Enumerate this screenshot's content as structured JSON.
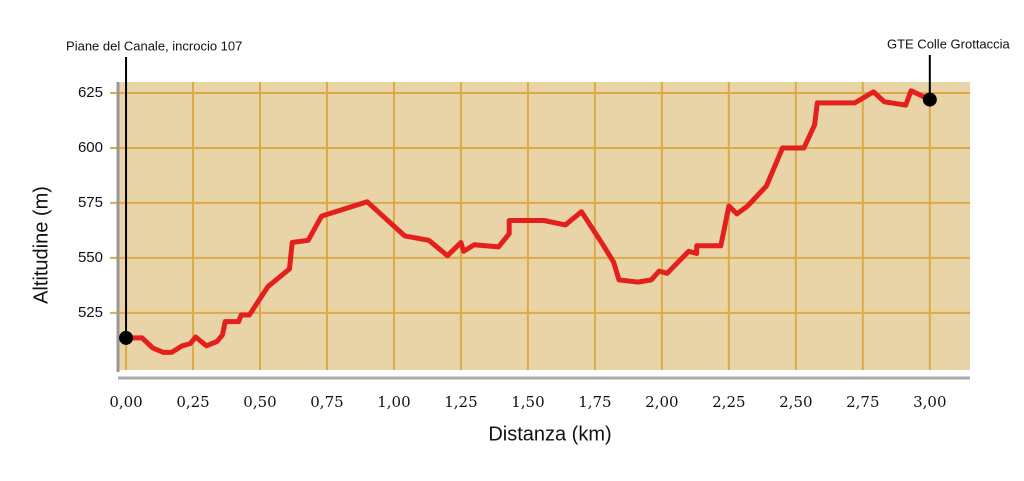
{
  "chart_data": {
    "type": "line",
    "x_label": "Distanza (km)",
    "y_label": "Altitudine (m)",
    "annotations": [
      "Piane del Canale, incrocio 107",
      "GTE Colle Grottaccia"
    ],
    "x": [
      0,
      0.06,
      0.1,
      0.14,
      0.17,
      0.21,
      0.24,
      0.26,
      0.3,
      0.34,
      0.36,
      0.37,
      0.42,
      0.43,
      0.46,
      0.53,
      0.61,
      0.62,
      0.68,
      0.73,
      0.9,
      1.04,
      1.13,
      1.2,
      1.25,
      1.26,
      1.3,
      1.39,
      1.43,
      1.43,
      1.56,
      1.64,
      1.7,
      1.78,
      1.82,
      1.84,
      1.91,
      1.96,
      1.99,
      2.02,
      2.1,
      2.13,
      2.13,
      2.22,
      2.25,
      2.28,
      2.32,
      2.39,
      2.45,
      2.53,
      2.57,
      2.58,
      2.72,
      2.79,
      2.83,
      2.91,
      2.93,
      3.0
    ],
    "series": [
      {
        "name": "Altitudine",
        "color": "#e3201e",
        "values": [
          513.6,
          513.6,
          509,
          507,
          507,
          510,
          511,
          514,
          510,
          512,
          515,
          521,
          521,
          524,
          524,
          537,
          545,
          557,
          558,
          569,
          575.5,
          560,
          558,
          551,
          557,
          553,
          556,
          555,
          561,
          567,
          567,
          565,
          571,
          556,
          548,
          540,
          539,
          540,
          544,
          543,
          553,
          552,
          555.5,
          555.5,
          573.6,
          570,
          573.6,
          582.7,
          600,
          600,
          610.5,
          620.5,
          620.5,
          625.5,
          621,
          619.5,
          626,
          622
        ]
      }
    ],
    "xlim": [
      -0.03,
      3.15
    ],
    "ylim": [
      499,
      630
    ],
    "xticks": [
      {
        "value": 0,
        "label": "0,00"
      },
      {
        "value": 0.25,
        "label": "0,25"
      },
      {
        "value": 0.5,
        "label": "0,50"
      },
      {
        "value": 0.75,
        "label": "0,75"
      },
      {
        "value": 1,
        "label": "1,00"
      },
      {
        "value": 1.25,
        "label": "1,25"
      },
      {
        "value": 1.5,
        "label": "1,50"
      },
      {
        "value": 1.75,
        "label": "1,75"
      },
      {
        "value": 2,
        "label": "2,00"
      },
      {
        "value": 2.25,
        "label": "2,25"
      },
      {
        "value": 2.5,
        "label": "2,50"
      },
      {
        "value": 2.75,
        "label": "2,75"
      },
      {
        "value": 3,
        "label": "3,00"
      }
    ],
    "yticks": [
      525,
      550,
      575,
      600,
      625
    ],
    "grid": true,
    "plot_background": "#e8d4a6",
    "grid_color": "#dcaa4a"
  }
}
